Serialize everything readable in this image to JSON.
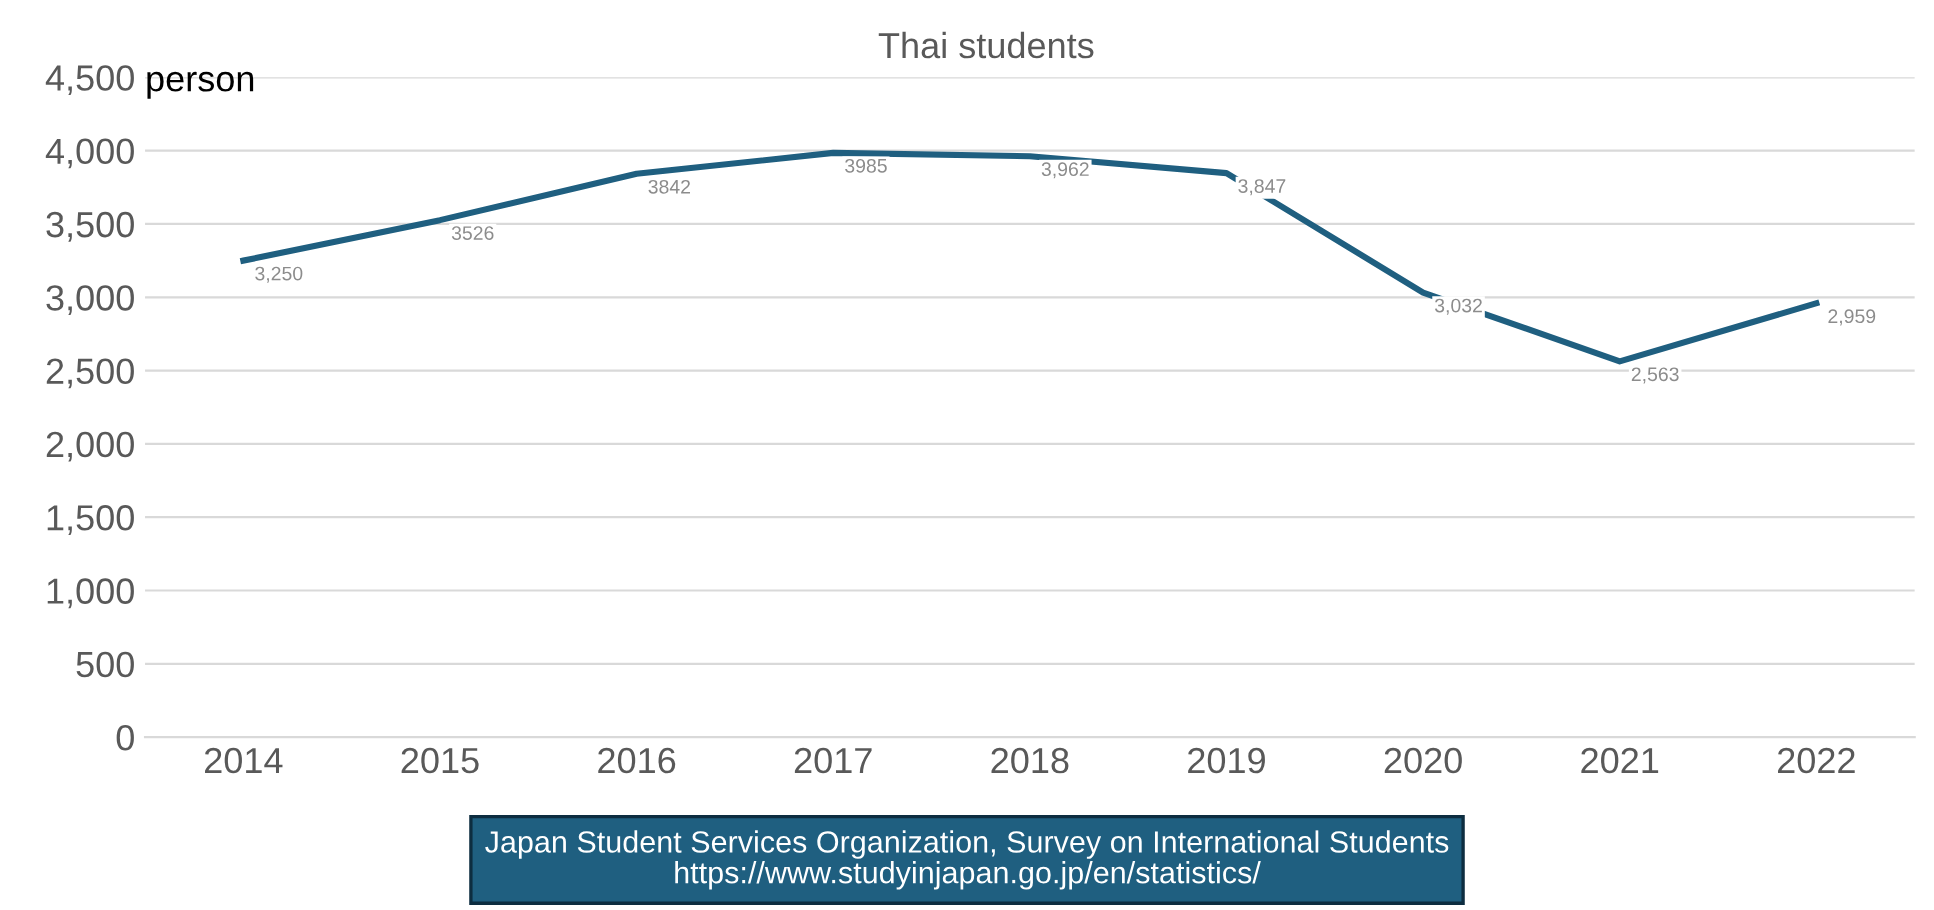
{
  "chart_data": {
    "type": "line",
    "title": "Thai students",
    "ylabel": "person",
    "categories": [
      "2014",
      "2015",
      "2016",
      "2017",
      "2018",
      "2019",
      "2020",
      "2021",
      "2022"
    ],
    "series": [
      {
        "color": "#1f5f80",
        "values": [
          3250,
          3526,
          3842,
          3985,
          3962,
          3847,
          3032,
          2563,
          2959
        ],
        "value_labels": [
          "3,250",
          "3526",
          "3842",
          "3985",
          "3,962",
          "3,847",
          "3,032",
          "2,563",
          "2,959"
        ]
      }
    ],
    "ylim": [
      0,
      4500
    ],
    "yticks": [
      {
        "value": 0,
        "label": "0"
      },
      {
        "value": 500,
        "label": "500"
      },
      {
        "value": 1000,
        "label": "1,000"
      },
      {
        "value": 1500,
        "label": "1,500"
      },
      {
        "value": 2000,
        "label": "2,000"
      },
      {
        "value": 2500,
        "label": "2,500"
      },
      {
        "value": 3000,
        "label": "3,000"
      },
      {
        "value": 3500,
        "label": "3,500"
      },
      {
        "value": 4000,
        "label": "4,000"
      },
      {
        "value": 4500,
        "label": "4,500"
      }
    ],
    "grid": "y",
    "legend": false,
    "marker": "none",
    "line_style": "solid",
    "annotations": [
      "Japan Student Services Organization, Survey on International Students\nhttps://www.studyinjapan.go.jp/en/statistics/"
    ]
  }
}
